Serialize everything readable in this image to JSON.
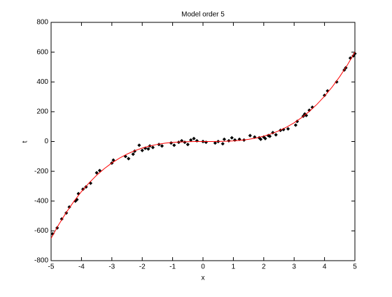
{
  "chart_data": {
    "type": "scatter",
    "title": "Model order 5",
    "x_label": "x",
    "y_label": "t",
    "xlim": [
      -5,
      5
    ],
    "xticks": [
      -5,
      -4,
      -3,
      -2,
      -1,
      0,
      1,
      2,
      3,
      4,
      5
    ],
    "ylim": [
      -800,
      800
    ],
    "yticks": [
      -800,
      -600,
      -400,
      -200,
      0,
      200,
      400,
      600,
      800
    ],
    "series": [
      {
        "type": "scatter",
        "color": "#000000",
        "x": [
          -4.95,
          -4.8,
          -4.65,
          -4.5,
          -4.4,
          -4.2,
          -4.15,
          -4.1,
          -3.95,
          -3.85,
          -3.7,
          -3.5,
          -3.4,
          -3.0,
          -2.95,
          -2.55,
          -2.45,
          -2.3,
          -2.25,
          -2.1,
          -2.0,
          -1.9,
          -1.8,
          -1.75,
          -1.65,
          -1.45,
          -1.35,
          -1.05,
          -0.95,
          -0.8,
          -0.7,
          -0.6,
          -0.5,
          -0.4,
          -0.3,
          -0.2,
          0,
          0.1,
          0.4,
          0.5,
          0.65,
          0.7,
          0.85,
          0.95,
          1.05,
          1.2,
          1.35,
          1.55,
          1.7,
          1.85,
          1.9,
          2.0,
          2.05,
          2.15,
          2.2,
          2.3,
          2.4,
          2.55,
          2.65,
          2.8,
          3.05,
          3.1,
          3.3,
          3.35,
          3.4,
          3.5,
          3.6,
          4.0,
          4.1,
          4.4,
          4.65,
          4.7,
          4.85,
          4.95,
          5.0
        ],
        "values": [
          -620,
          -580,
          -520,
          -480,
          -440,
          -400,
          -390,
          -350,
          -320,
          -305,
          -280,
          -210,
          -195,
          -145,
          -125,
          -100,
          -115,
          -85,
          -65,
          -25,
          -60,
          -45,
          -50,
          -30,
          -40,
          -20,
          -30,
          -10,
          -25,
          -5,
          5,
          -5,
          -20,
          10,
          20,
          5,
          0,
          -5,
          -10,
          0,
          -15,
          15,
          5,
          25,
          10,
          15,
          10,
          40,
          30,
          25,
          15,
          30,
          20,
          40,
          35,
          60,
          45,
          75,
          80,
          85,
          110,
          135,
          170,
          185,
          175,
          210,
          230,
          310,
          340,
          400,
          480,
          495,
          560,
          575,
          590
        ]
      },
      {
        "type": "line",
        "color": "#ff0000",
        "x": [
          -5,
          -4.75,
          -4.5,
          -4.25,
          -4,
          -3.75,
          -3.5,
          -3.25,
          -3,
          -2.75,
          -2.5,
          -2.25,
          -2,
          -1.75,
          -1.5,
          -1.25,
          -1,
          -0.75,
          -0.5,
          -0.25,
          0,
          0.25,
          0.5,
          0.75,
          1,
          1.25,
          1.5,
          1.75,
          2,
          2.25,
          2.5,
          2.75,
          3,
          3.25,
          3.5,
          3.75,
          4,
          4.25,
          4.5,
          4.75,
          5
        ],
        "values": [
          -650,
          -558.4,
          -475.9,
          -401.9,
          -336,
          -277.7,
          -226.6,
          -182.2,
          -144,
          -111.6,
          -84.4,
          -62.0,
          -44,
          -29.9,
          -19.1,
          -11.3,
          -6,
          -2.7,
          -0.9,
          -0.1,
          0,
          0.0,
          0.4,
          1.5,
          4,
          8.2,
          14.6,
          23.7,
          36,
          51.9,
          71.9,
          96.4,
          126,
          161.1,
          202.1,
          249.6,
          304,
          365.8,
          435.4,
          513.3,
          600
        ]
      }
    ]
  }
}
